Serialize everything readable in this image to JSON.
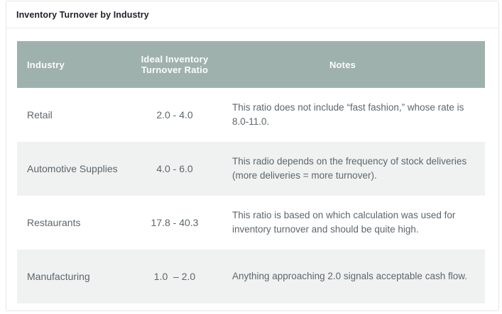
{
  "card": {
    "title": "Inventory Turnover by Industry"
  },
  "table": {
    "headers": {
      "industry": "Industry",
      "ratio": "Ideal Inventory Turnover Ratio",
      "notes": "Notes"
    },
    "rows": [
      {
        "industry": "Retail",
        "ratio": "2.0 - 4.0",
        "notes": "This ratio does not include “fast fashion,” whose rate is 8.0-11.0."
      },
      {
        "industry": "Automotive Supplies",
        "ratio": "4.0 - 6.0",
        "notes": "This radio depends on the frequency of stock deliveries (more deliveries = more turnover)."
      },
      {
        "industry": "Restaurants",
        "ratio": "17.8 - 40.3",
        "notes": "This ratio is based on which calculation was used for inventory turnover and should be quite high."
      },
      {
        "industry": "Manufacturing",
        "ratio": "1.0  – 2.0",
        "notes": "Anything approaching 2.0 signals acceptable cash flow."
      }
    ]
  },
  "colors": {
    "header_background": "#9fb1ac",
    "header_text": "#fbfcfc",
    "alt_row_background": "#eff2f1",
    "body_text": "#5d666c",
    "title_text": "#1d2127",
    "card_border": "#e5e6e6"
  },
  "chart_data": {
    "type": "table",
    "title": "Inventory Turnover by Industry",
    "columns": [
      "Industry",
      "Ideal Inventory Turnover Ratio",
      "Notes"
    ],
    "rows": [
      [
        "Retail",
        "2.0 - 4.0",
        "This ratio does not include “fast fashion,” whose rate is 8.0-11.0."
      ],
      [
        "Automotive Supplies",
        "4.0 - 6.0",
        "This radio depends on the frequency of stock deliveries (more deliveries = more turnover)."
      ],
      [
        "Restaurants",
        "17.8 - 40.3",
        "This ratio is based on which calculation was used for inventory turnover and should be quite high."
      ],
      [
        "Manufacturing",
        "1.0 – 2.0",
        "Anything approaching 2.0 signals acceptable cash flow."
      ]
    ],
    "ratio_ranges_numeric": {
      "Retail": [
        2.0,
        4.0
      ],
      "Automotive Supplies": [
        4.0,
        6.0
      ],
      "Restaurants": [
        17.8,
        40.3
      ],
      "Manufacturing": [
        1.0,
        2.0
      ]
    }
  }
}
